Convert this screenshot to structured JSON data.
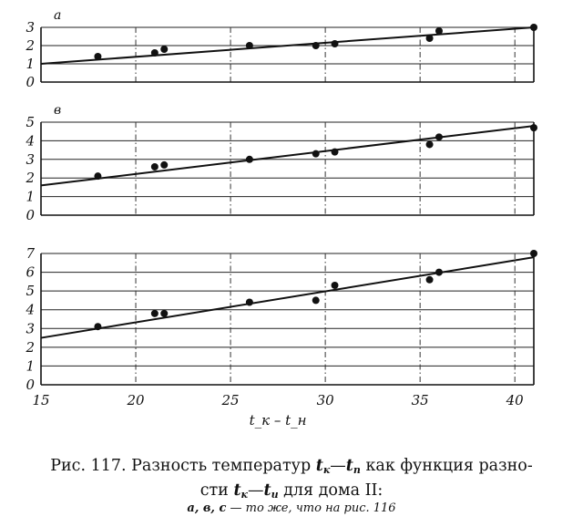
{
  "figure": {
    "x_axis_label": "t_к – t_н",
    "x_ticks": [
      15,
      20,
      25,
      30,
      35,
      40
    ],
    "panels": [
      {
        "panel_label": "а",
        "y_ticks": [
          0,
          1,
          2,
          3
        ]
      },
      {
        "panel_label": "в",
        "y_ticks": [
          0,
          1,
          2,
          3,
          4,
          5
        ]
      },
      {
        "panel_label": "",
        "y_ticks": [
          0,
          1,
          2,
          3,
          4,
          5,
          6,
          7
        ]
      }
    ]
  },
  "caption": {
    "fig_label": "Рис. 117.",
    "text_1": "Разность температур",
    "t_k_sym": "t",
    "t_k_sub": "к",
    "dash_1": "—",
    "t_p_sym": "t",
    "t_p_sub": "п",
    "text_2": "как функция разно-",
    "text_3": "сти",
    "t_k2_sym": "t",
    "t_k2_sub": "к",
    "dash_2": "—",
    "t_i_sym": "t",
    "t_i_sub": "и",
    "text_4": "для дома II:",
    "sub_letters": "а, в, с",
    "sub_text": "— то же, что на рис. 116"
  },
  "chart_data": [
    {
      "type": "scatter",
      "panel": "а",
      "xlim": [
        15,
        41
      ],
      "ylim": [
        0,
        3
      ],
      "points": [
        {
          "x": 18,
          "y": 1.4
        },
        {
          "x": 21,
          "y": 1.6
        },
        {
          "x": 21.5,
          "y": 1.8
        },
        {
          "x": 26,
          "y": 2.0
        },
        {
          "x": 29.5,
          "y": 2.0
        },
        {
          "x": 30.5,
          "y": 2.1
        },
        {
          "x": 35.5,
          "y": 2.4
        },
        {
          "x": 36,
          "y": 2.8
        },
        {
          "x": 41,
          "y": 3.0
        }
      ],
      "fit_line": {
        "x": [
          15,
          41
        ],
        "y": [
          1.0,
          3.0
        ]
      },
      "grid": true
    },
    {
      "type": "scatter",
      "panel": "в",
      "xlim": [
        15,
        41
      ],
      "ylim": [
        0,
        5
      ],
      "points": [
        {
          "x": 18,
          "y": 2.1
        },
        {
          "x": 21,
          "y": 2.6
        },
        {
          "x": 21.5,
          "y": 2.7
        },
        {
          "x": 26,
          "y": 3.0
        },
        {
          "x": 29.5,
          "y": 3.3
        },
        {
          "x": 30.5,
          "y": 3.4
        },
        {
          "x": 35.5,
          "y": 3.8
        },
        {
          "x": 36,
          "y": 4.2
        },
        {
          "x": 41,
          "y": 4.7
        }
      ],
      "fit_line": {
        "x": [
          15,
          41
        ],
        "y": [
          1.6,
          4.8
        ]
      },
      "grid": true
    },
    {
      "type": "scatter",
      "panel": "с",
      "xlim": [
        15,
        41
      ],
      "ylim": [
        0,
        7
      ],
      "points": [
        {
          "x": 18,
          "y": 3.1
        },
        {
          "x": 21,
          "y": 3.8
        },
        {
          "x": 21.5,
          "y": 3.8
        },
        {
          "x": 26,
          "y": 4.4
        },
        {
          "x": 29.5,
          "y": 4.5
        },
        {
          "x": 30.5,
          "y": 5.3
        },
        {
          "x": 35.5,
          "y": 5.6
        },
        {
          "x": 36,
          "y": 6.0
        },
        {
          "x": 41,
          "y": 7.0
        }
      ],
      "fit_line": {
        "x": [
          15,
          41
        ],
        "y": [
          2.5,
          6.8
        ]
      },
      "grid": true
    }
  ]
}
